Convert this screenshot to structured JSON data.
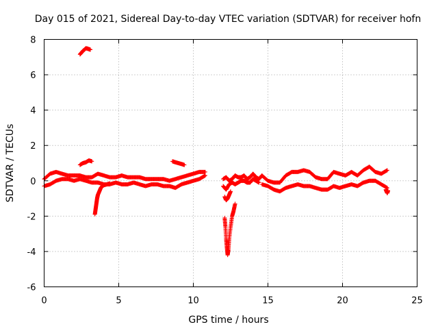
{
  "chart_data": {
    "type": "scatter",
    "title": "Day 015 of 2021, Sidereal Day-to-day VTEC variation (SDTVAR) for receiver hofn",
    "xlabel": "GPS time / hours",
    "ylabel": "SDTVAR / TECUs",
    "xlim": [
      0,
      25
    ],
    "ylim": [
      -6,
      8
    ],
    "x_ticks": [
      "0",
      "5",
      "10",
      "15",
      "20",
      "25"
    ],
    "y_ticks": [
      "-6",
      "-4",
      "-2",
      "0",
      "2",
      "4",
      "6",
      "8"
    ],
    "grid": true,
    "marker": "+",
    "color": "#ff0000",
    "series": [
      {
        "name": "main band low",
        "x": [
          0.0,
          0.4,
          0.8,
          1.2,
          1.6,
          2.0,
          2.4,
          2.8,
          3.2,
          3.6,
          4.0,
          4.4,
          4.8,
          5.2,
          5.6,
          6.0,
          6.4,
          6.8,
          7.2,
          7.6,
          8.0,
          8.4,
          8.8,
          9.2,
          9.6,
          10.0,
          10.4,
          10.8
        ],
        "y": [
          -0.3,
          -0.2,
          0.0,
          0.1,
          0.1,
          0.0,
          0.1,
          0.0,
          -0.1,
          -0.1,
          -0.2,
          -0.2,
          -0.1,
          -0.2,
          -0.2,
          -0.1,
          -0.2,
          -0.3,
          -0.2,
          -0.2,
          -0.3,
          -0.3,
          -0.4,
          -0.2,
          -0.1,
          0.0,
          0.1,
          0.3
        ]
      },
      {
        "name": "main band high",
        "x": [
          0.0,
          0.4,
          0.8,
          1.2,
          1.6,
          2.0,
          2.4,
          2.8,
          3.2,
          3.6,
          4.0,
          4.4,
          4.8,
          5.2,
          5.6,
          6.0,
          6.4,
          6.8,
          7.2,
          7.6,
          8.0,
          8.4,
          8.8,
          9.2,
          9.6,
          10.0,
          10.4,
          10.8
        ],
        "y": [
          0.1,
          0.4,
          0.5,
          0.4,
          0.3,
          0.3,
          0.3,
          0.2,
          0.2,
          0.4,
          0.3,
          0.2,
          0.2,
          0.3,
          0.2,
          0.2,
          0.2,
          0.1,
          0.1,
          0.1,
          0.1,
          0.0,
          0.1,
          0.2,
          0.3,
          0.4,
          0.5,
          0.5
        ]
      },
      {
        "name": "outlier near 7.4",
        "x": [
          2.4,
          2.5,
          2.6,
          2.7,
          2.8,
          2.9,
          3.0,
          3.1
        ],
        "y": [
          7.15,
          7.25,
          7.35,
          7.42,
          7.5,
          7.48,
          7.45,
          7.42
        ]
      },
      {
        "name": "arc near 1.0 (hour 2.5-3.2)",
        "x": [
          2.4,
          2.6,
          2.8,
          3.0,
          3.2
        ],
        "y": [
          0.9,
          1.0,
          1.05,
          1.15,
          1.1
        ]
      },
      {
        "name": "drop to -1.9 (hour 3.3-3.8)",
        "x": [
          3.4,
          3.45,
          3.5,
          3.55,
          3.6,
          3.7,
          3.8,
          3.9,
          4.0,
          4.2,
          4.4
        ],
        "y": [
          -1.9,
          -1.6,
          -1.3,
          -1.0,
          -0.8,
          -0.6,
          -0.4,
          -0.3,
          -0.25,
          -0.2,
          -0.15
        ]
      },
      {
        "name": "arc near 1.0 (hour 8.6-9.4)",
        "x": [
          8.6,
          8.8,
          9.0,
          9.2,
          9.4
        ],
        "y": [
          1.1,
          1.05,
          1.0,
          0.95,
          0.9
        ]
      },
      {
        "name": "block 12-14.6",
        "x": [
          12.0,
          12.2,
          12.4,
          12.6,
          12.8,
          13.0,
          13.2,
          13.4,
          13.6,
          13.8,
          14.0,
          14.2,
          14.4,
          14.6
        ],
        "y": [
          0.1,
          0.2,
          0.0,
          0.1,
          0.3,
          0.2,
          0.2,
          0.3,
          0.1,
          0.2,
          0.4,
          0.2,
          0.1,
          0.3
        ]
      },
      {
        "name": "block 12-14.6 low",
        "x": [
          12.0,
          12.2,
          12.4,
          12.6,
          12.8,
          13.0,
          13.2,
          13.4,
          13.6,
          13.8,
          14.0,
          14.2,
          14.4
        ],
        "y": [
          -0.3,
          -0.5,
          -0.2,
          -0.1,
          -0.2,
          -0.1,
          0.0,
          0.0,
          -0.1,
          -0.1,
          0.1,
          0.0,
          -0.1
        ]
      },
      {
        "name": "dip to -4.2 (hour 12.1-12.6)",
        "x": [
          12.1,
          12.15,
          12.2,
          12.25,
          12.3,
          12.35,
          12.4,
          12.5,
          12.6,
          12.7,
          12.8
        ],
        "y": [
          -2.1,
          -2.6,
          -3.3,
          -3.8,
          -4.2,
          -3.9,
          -3.3,
          -2.6,
          -2.0,
          -1.7,
          -1.3
        ]
      },
      {
        "name": "cluster near -1 (hour 12.1-12.5)",
        "x": [
          12.1,
          12.2,
          12.3,
          12.4,
          12.5
        ],
        "y": [
          -0.9,
          -1.1,
          -1.0,
          -0.8,
          -0.6
        ]
      },
      {
        "name": "band 15-23 high",
        "x": [
          14.6,
          15.0,
          15.4,
          15.8,
          16.2,
          16.6,
          17.0,
          17.4,
          17.8,
          18.2,
          18.6,
          19.0,
          19.4,
          19.8,
          20.2,
          20.6,
          21.0,
          21.4,
          21.8,
          22.2,
          22.6,
          23.0
        ],
        "y": [
          0.3,
          0.0,
          -0.1,
          -0.1,
          0.3,
          0.5,
          0.5,
          0.6,
          0.5,
          0.2,
          0.1,
          0.1,
          0.5,
          0.4,
          0.3,
          0.5,
          0.3,
          0.6,
          0.8,
          0.5,
          0.4,
          0.6
        ]
      },
      {
        "name": "band 15-23 low",
        "x": [
          14.6,
          15.0,
          15.4,
          15.8,
          16.2,
          16.6,
          17.0,
          17.4,
          17.8,
          18.2,
          18.6,
          19.0,
          19.4,
          19.8,
          20.2,
          20.6,
          21.0,
          21.4,
          21.8,
          22.2,
          22.6,
          23.0
        ],
        "y": [
          -0.2,
          -0.3,
          -0.5,
          -0.6,
          -0.4,
          -0.3,
          -0.2,
          -0.3,
          -0.3,
          -0.4,
          -0.5,
          -0.5,
          -0.3,
          -0.4,
          -0.3,
          -0.2,
          -0.3,
          -0.1,
          0.0,
          0.0,
          -0.2,
          -0.4
        ]
      },
      {
        "name": "end cluster",
        "x": [
          22.9,
          22.95,
          23.0,
          23.05
        ],
        "y": [
          -0.5,
          -0.6,
          -0.7,
          -0.55
        ]
      }
    ]
  }
}
